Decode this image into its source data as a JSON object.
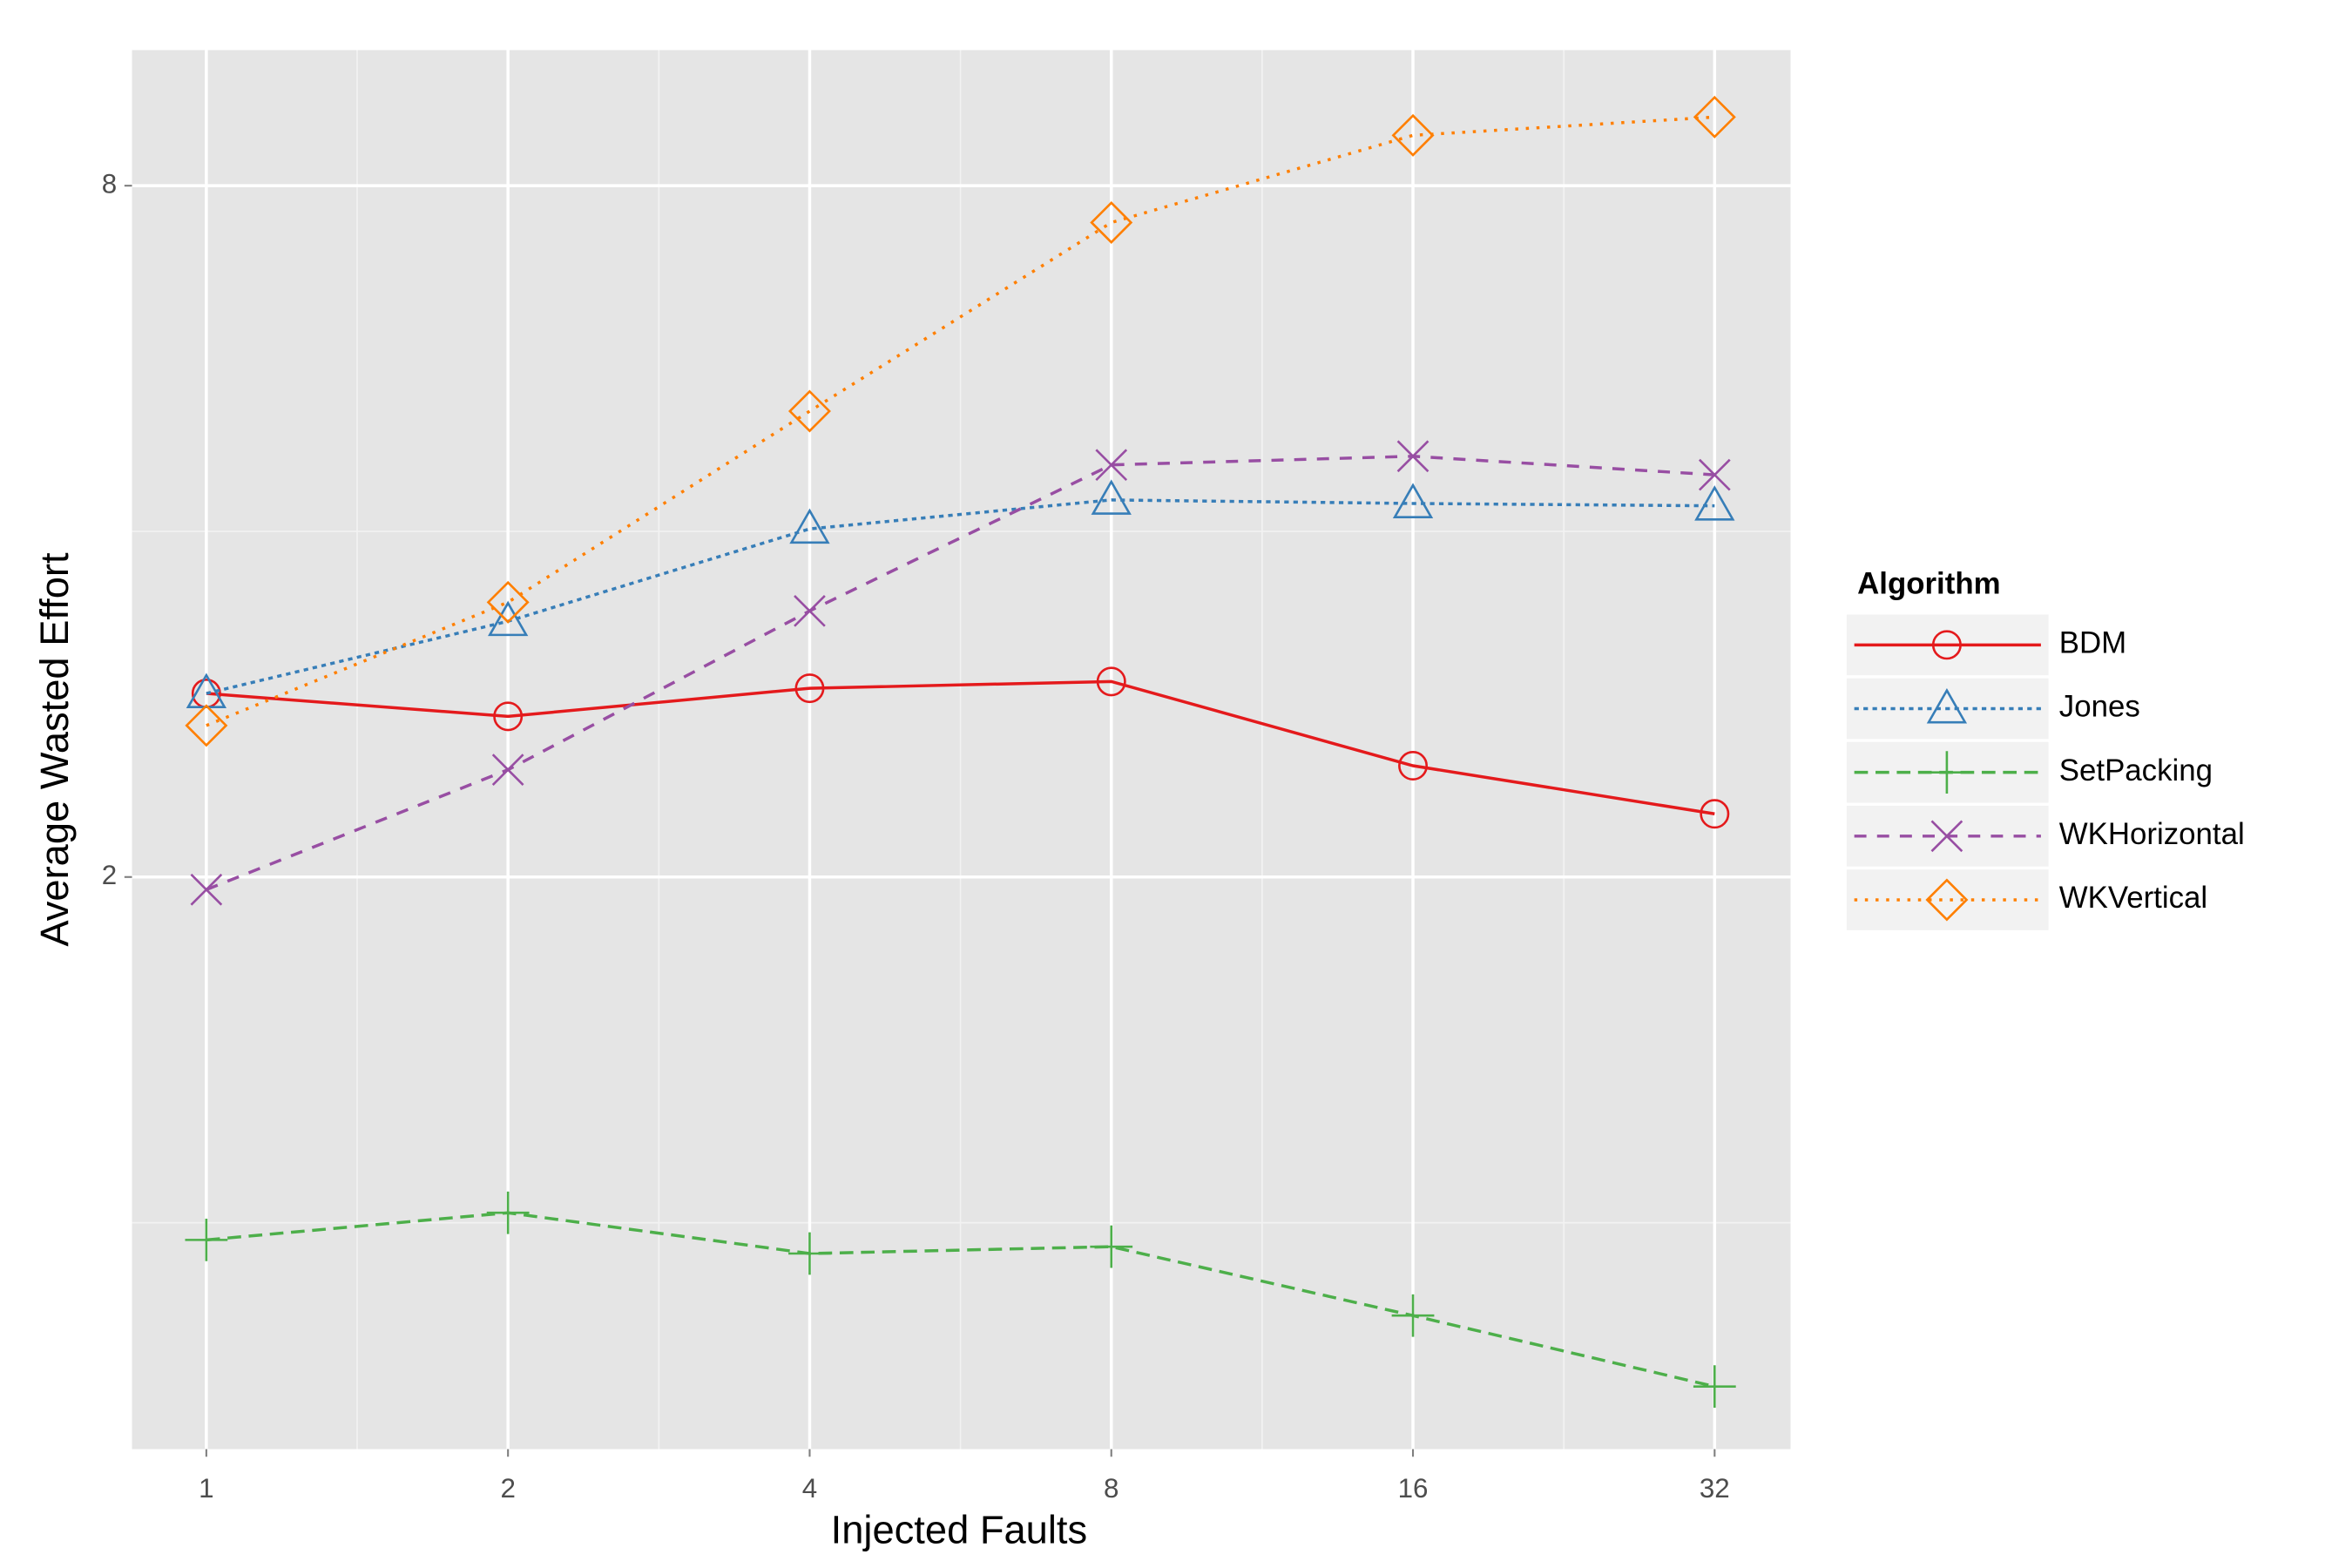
{
  "chart_data": {
    "type": "line",
    "xlabel": "Injected Faults",
    "ylabel": "Average Wasted Effort",
    "x": [
      1,
      2,
      4,
      8,
      16,
      32
    ],
    "xlim": [
      0.843,
      38.1
    ],
    "xticks": [
      1,
      2,
      4,
      8,
      16,
      32
    ],
    "ylim": [
      0.635,
      10.5
    ],
    "yticks": [
      2,
      8
    ],
    "xlog": true,
    "ylog": true,
    "grid": true,
    "legend_title": "Algorithm",
    "legend": "right",
    "series": [
      {
        "name": "BDM",
        "color": "#e41a1c",
        "marker": "circle",
        "dash": "none",
        "values": [
          2.89,
          2.76,
          2.92,
          2.96,
          2.5,
          2.27
        ]
      },
      {
        "name": "Jones",
        "color": "#377eb8",
        "marker": "triangle",
        "dash": "3,3",
        "values": [
          2.89,
          3.34,
          4.02,
          4.26,
          4.23,
          4.21
        ]
      },
      {
        "name": "SetPacking",
        "color": "#4daf4a",
        "marker": "plus",
        "dash": "9,5",
        "values": [
          0.966,
          1.02,
          0.94,
          0.953,
          0.83,
          0.72
        ]
      },
      {
        "name": "WKHorizontal",
        "color": "#984ea3",
        "marker": "cross",
        "dash": "8,7",
        "values": [
          1.95,
          2.48,
          3.41,
          4.57,
          4.65,
          4.48
        ]
      },
      {
        "name": "WKVertical",
        "color": "#ff7f00",
        "marker": "diamond",
        "dash": "2,5",
        "values": [
          2.71,
          3.47,
          5.09,
          7.43,
          8.85,
          9.18
        ]
      }
    ]
  }
}
